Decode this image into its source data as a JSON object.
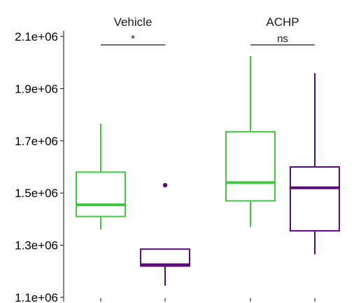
{
  "chart_data": {
    "type": "box",
    "y_ticks": [
      "1.1e+06",
      "1.3e+06",
      "1.5e+06",
      "1.7e+06",
      "1.9e+06",
      "2.1e+06"
    ],
    "ylim": [
      1100000,
      2100000
    ],
    "colors": {
      "green": "#44c544",
      "purple": "#5b0b78"
    },
    "panels": [
      {
        "title": "Vehicle",
        "significance": "*",
        "boxes": [
          {
            "color": "green",
            "whisker_low": 1360000,
            "q1": 1410000,
            "median": 1455000,
            "q3": 1580000,
            "whisker_high": 1765000,
            "outliers": []
          },
          {
            "color": "purple",
            "whisker_low": 1145000,
            "q1": 1220000,
            "median": 1225000,
            "q3": 1285000,
            "whisker_high": 1285000,
            "outliers": [
              1530000
            ]
          }
        ]
      },
      {
        "title": "ACHP",
        "significance": "ns",
        "boxes": [
          {
            "color": "green",
            "whisker_low": 1370000,
            "q1": 1470000,
            "median": 1540000,
            "q3": 1735000,
            "whisker_high": 2025000,
            "outliers": []
          },
          {
            "color": "purple",
            "whisker_low": 1265000,
            "q1": 1355000,
            "median": 1520000,
            "q3": 1600000,
            "whisker_high": 1960000,
            "outliers": []
          }
        ]
      }
    ]
  }
}
